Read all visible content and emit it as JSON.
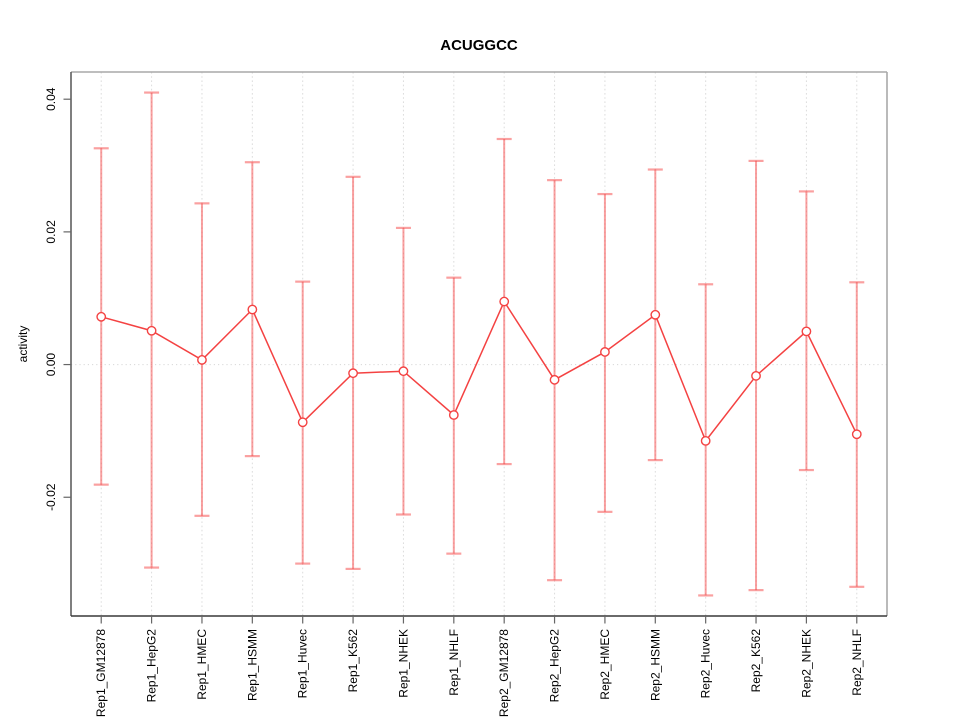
{
  "title": "ACUGGCC",
  "chart_data": {
    "type": "line",
    "title": "ACUGGCC",
    "xlabel": "",
    "ylabel": "activity",
    "categories": [
      "Rep1_GM12878",
      "Rep1_HepG2",
      "Rep1_HMEC",
      "Rep1_HSMM",
      "Rep1_Huvec",
      "Rep1_K562",
      "Rep1_NHEK",
      "Rep1_NHLF",
      "Rep2_GM12878",
      "Rep2_HepG2",
      "Rep2_HMEC",
      "Rep2_HSMM",
      "Rep2_Huvec",
      "Rep2_K562",
      "Rep2_NHEK",
      "Rep2_NHLF"
    ],
    "series": [
      {
        "name": "activity",
        "values": [
          0.0072,
          0.0051,
          0.0007,
          0.0083,
          -0.0087,
          -0.0013,
          -0.001,
          -0.0076,
          0.0095,
          -0.0023,
          0.0019,
          0.0075,
          -0.0115,
          -0.0017,
          0.005,
          -0.0105
        ],
        "error_upper": [
          0.0326,
          0.041,
          0.0243,
          0.0305,
          0.0125,
          0.0283,
          0.0206,
          0.0131,
          0.034,
          0.0278,
          0.0257,
          0.0294,
          0.0121,
          0.0307,
          0.0261,
          0.0124
        ],
        "error_lower": [
          -0.0181,
          -0.0306,
          -0.0228,
          -0.0138,
          -0.03,
          -0.0308,
          -0.0226,
          -0.0285,
          -0.015,
          -0.0325,
          -0.0222,
          -0.0144,
          -0.0348,
          -0.034,
          -0.0159,
          -0.0335
        ]
      }
    ],
    "ylim": [
      -0.0379,
      0.0441
    ],
    "yticks": [
      -0.02,
      0.0,
      0.02,
      0.04
    ],
    "ytick_labels": [
      "-0.02",
      "0.00",
      "0.02",
      "0.04"
    ],
    "grid": {
      "vertical_dotted_per_category": true,
      "horizontal_dotted_at_zero": true,
      "legend": "none"
    },
    "marker": "open-circle",
    "colors": {
      "series_line": "#f44242",
      "marker_stroke": "#f44242",
      "marker_fill": "#ffffff",
      "error_bar": "rgba(246,82,82,0.55)",
      "gridline": "#dcdcdc",
      "zero_line": "#d8d8d8",
      "box_top_right": "#a8a8a8",
      "axis_left": "#5f5f5f",
      "axis_bottom": "#383838",
      "tick": "#666666",
      "text": "#000000"
    }
  }
}
